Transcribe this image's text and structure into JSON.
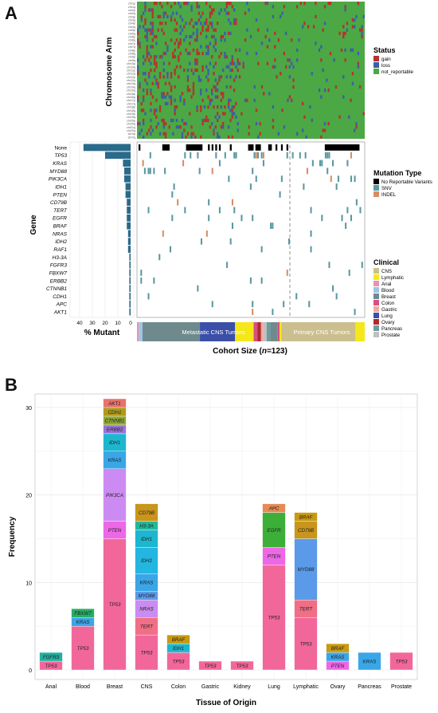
{
  "panel_a": {
    "label": "A",
    "heatmap_ylabel": "Chromosome Arm",
    "chromosome_arms": [
      "chr1p",
      "chr1q",
      "chr2p",
      "chr2q",
      "chr3p",
      "chr3q",
      "chr4p",
      "chr4q",
      "chr5p",
      "chr5q",
      "chr6p",
      "chr6q",
      "chr7p",
      "chr7q",
      "chr8p",
      "chr8q",
      "chr9p",
      "chr9q",
      "chr10p",
      "chr10q",
      "chr11p",
      "chr11q",
      "chr12p",
      "chr12q",
      "chr13q",
      "chr14q",
      "chr15q",
      "chr16p",
      "chr16q",
      "chr17p",
      "chr17q",
      "chr18p",
      "chr18q",
      "chr19p",
      "chr19q",
      "chr20p",
      "chr20q",
      "chr21q",
      "chr22q",
      "chrXp",
      "chrXq"
    ],
    "genes": [
      "None",
      "TP53",
      "KRAS",
      "MYD88",
      "PIK3CA",
      "IDH1",
      "PTEN",
      "CD79B",
      "TERT",
      "EGFR",
      "BRAF",
      "NRAS",
      "IDH2",
      "RAF1",
      "H3-3A",
      "FGFR3",
      "FBXW7",
      "ERBB2",
      "CTNNB1",
      "CDH1",
      "APC",
      "AKT1"
    ],
    "gene_axis_label": "Gene",
    "percent_axis_label": "% Mutant",
    "percent_ticks": [
      "40",
      "30",
      "20",
      "10",
      "0"
    ],
    "percent_mutant": [
      37,
      20,
      6,
      5,
      5,
      4,
      4,
      3,
      3,
      3,
      3,
      2,
      2,
      2,
      1,
      1,
      1,
      1,
      1,
      1,
      1,
      1
    ],
    "cohort_label": "Cohort Size (",
    "cohort_n": "n",
    "cohort_value": "=123)",
    "clinical_bar_labels": [
      "Metastatic CNS Tumors",
      "Primary CNS Tumors"
    ],
    "legends": {
      "status": {
        "title": "Status",
        "items": [
          {
            "label": "gain",
            "color": "#b5332c"
          },
          {
            "label": "loss",
            "color": "#3c5ea8"
          },
          {
            "label": "not_reportable",
            "color": "#4ba845"
          }
        ]
      },
      "mutation_type": {
        "title": "Mutation Type",
        "items": [
          {
            "label": "No Reportable Variants",
            "color": "#000000"
          },
          {
            "label": "SNV",
            "color": "#5b98a0"
          },
          {
            "label": "INDEL",
            "color": "#d98e62"
          }
        ]
      },
      "clinical": {
        "title": "Clinical",
        "items": [
          {
            "label": "CNS",
            "color": "#cbbf8f"
          },
          {
            "label": "Lymphatic",
            "color": "#f5e81a"
          },
          {
            "label": "Anal",
            "color": "#e893b0"
          },
          {
            "label": "Blood",
            "color": "#9ec5e6"
          },
          {
            "label": "Breast",
            "color": "#6f8a8c"
          },
          {
            "label": "Colon",
            "color": "#d64f85"
          },
          {
            "label": "Gastric",
            "color": "#f4a6a0"
          },
          {
            "label": "Lung",
            "color": "#3b4fa8"
          },
          {
            "label": "Ovary",
            "color": "#b02a2a"
          },
          {
            "label": "Pancreas",
            "color": "#6f9aa0"
          },
          {
            "label": "Prostate",
            "color": "#c0c0c0"
          }
        ]
      }
    }
  },
  "panel_b": {
    "label": "B",
    "chart_data": {
      "type": "bar",
      "stacked": true,
      "xlabel": "Tissue of Origin",
      "ylabel": "Frequency",
      "ylim": [
        0,
        31
      ],
      "yticks": [
        0,
        10,
        20,
        30
      ],
      "grid": true,
      "categories": [
        "Anal",
        "Blood",
        "Breast",
        "CNS",
        "Colon",
        "Gastric",
        "Kidney",
        "Lung",
        "Lymphatic",
        "Ovary",
        "Pancreas",
        "Prostate"
      ],
      "stacks": [
        [
          {
            "gene": "TP53",
            "value": 1
          },
          {
            "gene": "FGFR3",
            "value": 1
          }
        ],
        [
          {
            "gene": "TP53",
            "value": 5
          },
          {
            "gene": "KRAS",
            "value": 1
          },
          {
            "gene": "FBXW7",
            "value": 1
          }
        ],
        [
          {
            "gene": "TP53",
            "value": 15
          },
          {
            "gene": "PTEN",
            "value": 2
          },
          {
            "gene": "PIK3CA",
            "value": 6
          },
          {
            "gene": "KRAS",
            "value": 2
          },
          {
            "gene": "IDH1",
            "value": 2
          },
          {
            "gene": "ERBB2",
            "value": 1
          },
          {
            "gene": "CTNNB1",
            "value": 1
          },
          {
            "gene": "CDH1",
            "value": 1
          },
          {
            "gene": "AKT1",
            "value": 1
          }
        ],
        [
          {
            "gene": "TP53",
            "value": 4
          },
          {
            "gene": "TERT",
            "value": 2
          },
          {
            "gene": "NRAS",
            "value": 2
          },
          {
            "gene": "MYD88",
            "value": 1
          },
          {
            "gene": "KRAS",
            "value": 2
          },
          {
            "gene": "IDH2",
            "value": 3
          },
          {
            "gene": "IDH1",
            "value": 2
          },
          {
            "gene": "H3-3A",
            "value": 1
          },
          {
            "gene": "CD79B",
            "value": 2
          }
        ],
        [
          {
            "gene": "TP53",
            "value": 2
          },
          {
            "gene": "IDH1",
            "value": 1
          },
          {
            "gene": "BRAF",
            "value": 1
          }
        ],
        [
          {
            "gene": "TP53",
            "value": 1
          }
        ],
        [
          {
            "gene": "TP53",
            "value": 1
          }
        ],
        [
          {
            "gene": "TP53",
            "value": 12
          },
          {
            "gene": "PTEN",
            "value": 2
          },
          {
            "gene": "EGFR",
            "value": 4
          },
          {
            "gene": "APC",
            "value": 1
          }
        ],
        [
          {
            "gene": "TP53",
            "value": 6
          },
          {
            "gene": "TERT",
            "value": 2
          },
          {
            "gene": "MYD88",
            "value": 7
          },
          {
            "gene": "CD79B",
            "value": 2
          },
          {
            "gene": "BRAF",
            "value": 1
          }
        ],
        [
          {
            "gene": "PTEN",
            "value": 1
          },
          {
            "gene": "KRAS",
            "value": 1
          },
          {
            "gene": "BRAF",
            "value": 1
          }
        ],
        [
          {
            "gene": "KRAS",
            "value": 2
          }
        ],
        [
          {
            "gene": "TP53",
            "value": 2
          }
        ]
      ],
      "gene_colors": {
        "TP53": "#f2679a",
        "PTEN": "#ed67e6",
        "PIK3CA": "#cc8bf2",
        "KRAS": "#3aa6e8",
        "IDH1": "#1cb7cf",
        "IDH2": "#23b6e0",
        "ERBB2": "#9a73d8",
        "CTNNB1": "#8ea832",
        "CDH1": "#b09a1c",
        "AKT1": "#e8736a",
        "TERT": "#f06f86",
        "NRAS": "#c98cf0",
        "MYD88": "#5a9ae8",
        "H3-3A": "#22b79b",
        "CD79B": "#c9951c",
        "BRAF": "#c99a10",
        "FGFR3": "#22b0a0",
        "FBXW7": "#28ad64",
        "EGFR": "#3caf38",
        "APC": "#e78a54"
      }
    }
  }
}
